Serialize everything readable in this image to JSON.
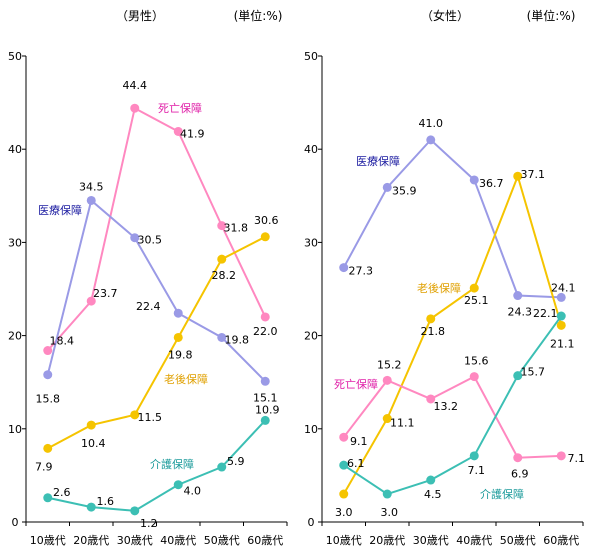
{
  "chart_data": [
    {
      "type": "line",
      "title": "（男性）",
      "unit_label": "(単位:%)",
      "categories": [
        "10歳代",
        "20歳代",
        "30歳代",
        "40歳代",
        "50歳代",
        "60歳代"
      ],
      "ylim": [
        0,
        50
      ],
      "yticks": [
        0,
        10,
        20,
        30,
        40,
        50
      ],
      "grid": false,
      "series": [
        {
          "name": "死亡保障",
          "color": "#ff88c0",
          "values": [
            18.4,
            23.7,
            44.4,
            41.9,
            31.8,
            22.0
          ],
          "value_labels": [
            "18.4",
            "23.7",
            "44.4",
            "41.9",
            "31.8",
            "22.0"
          ]
        },
        {
          "name": "医療保障",
          "color": "#9a9ae6",
          "values": [
            15.8,
            34.5,
            30.5,
            22.4,
            19.8,
            15.1
          ],
          "value_labels": [
            "15.8",
            "34.5",
            "30.5",
            "22.4",
            "19.8",
            "15.1"
          ]
        },
        {
          "name": "老後保障",
          "color": "#f5c400",
          "values": [
            7.9,
            10.4,
            11.5,
            19.8,
            28.2,
            30.6
          ],
          "value_labels": [
            "7.9",
            "10.4",
            "11.5",
            "19.8",
            "28.2",
            "30.6"
          ]
        },
        {
          "name": "介護保障",
          "color": "#3cbfb4",
          "values": [
            2.6,
            1.6,
            1.2,
            4.0,
            5.9,
            10.9
          ],
          "value_labels": [
            "2.6",
            "1.6",
            "1.2",
            "4.0",
            "5.9",
            "10.9"
          ]
        }
      ]
    },
    {
      "type": "line",
      "title": "（女性）",
      "unit_label": "(単位:%)",
      "categories": [
        "10歳代",
        "20歳代",
        "30歳代",
        "40歳代",
        "50歳代",
        "60歳代"
      ],
      "ylim": [
        0,
        50
      ],
      "yticks": [
        0,
        10,
        20,
        30,
        40,
        50
      ],
      "grid": false,
      "series": [
        {
          "name": "医療保障",
          "color": "#9a9ae6",
          "values": [
            27.3,
            35.9,
            41.0,
            36.7,
            24.3,
            24.1
          ],
          "value_labels": [
            "27.3",
            "35.9",
            "41.0",
            "36.7",
            "24.3",
            "24.1"
          ]
        },
        {
          "name": "老後保障",
          "color": "#f5c400",
          "values": [
            3.0,
            11.1,
            21.8,
            25.1,
            37.1,
            21.1
          ],
          "value_labels": [
            "3.0",
            "11.1",
            "21.8",
            "25.1",
            "37.1",
            "21.1"
          ]
        },
        {
          "name": "死亡保障",
          "color": "#ff88c0",
          "values": [
            9.1,
            15.2,
            13.2,
            15.6,
            6.9,
            7.1
          ],
          "value_labels": [
            "9.1",
            "15.2",
            "13.2",
            "15.6",
            "6.9",
            "7.1"
          ]
        },
        {
          "name": "介護保障",
          "color": "#3cbfb4",
          "values": [
            6.1,
            3.0,
            4.5,
            7.1,
            15.7,
            22.1
          ],
          "value_labels": [
            "6.1",
            "3.0",
            "4.5",
            "7.1",
            "15.7",
            "22.1"
          ]
        }
      ]
    }
  ]
}
